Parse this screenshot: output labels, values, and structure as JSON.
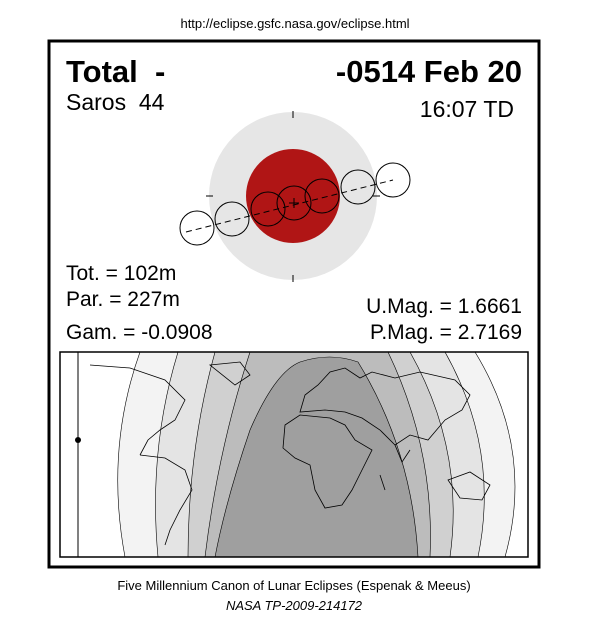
{
  "url": "http://eclipse.gsfc.nasa.gov/eclipse.html",
  "header": {
    "type": "Total  -",
    "date": "-0514 Feb 20",
    "saros": "Saros  44",
    "time": "16:07 TD"
  },
  "stats": {
    "tot": "Tot. = 102m",
    "par": "Par. = 227m",
    "gam": "Gam. = -0.0908",
    "umag": "U.Mag. = 1.6661",
    "pmag": "P.Mag. = 2.7169"
  },
  "footer": {
    "canon": "Five Millennium Canon of Lunar Eclipses (Espenak & Meeus)",
    "publication": "NASA TP-2009-214172"
  }
}
